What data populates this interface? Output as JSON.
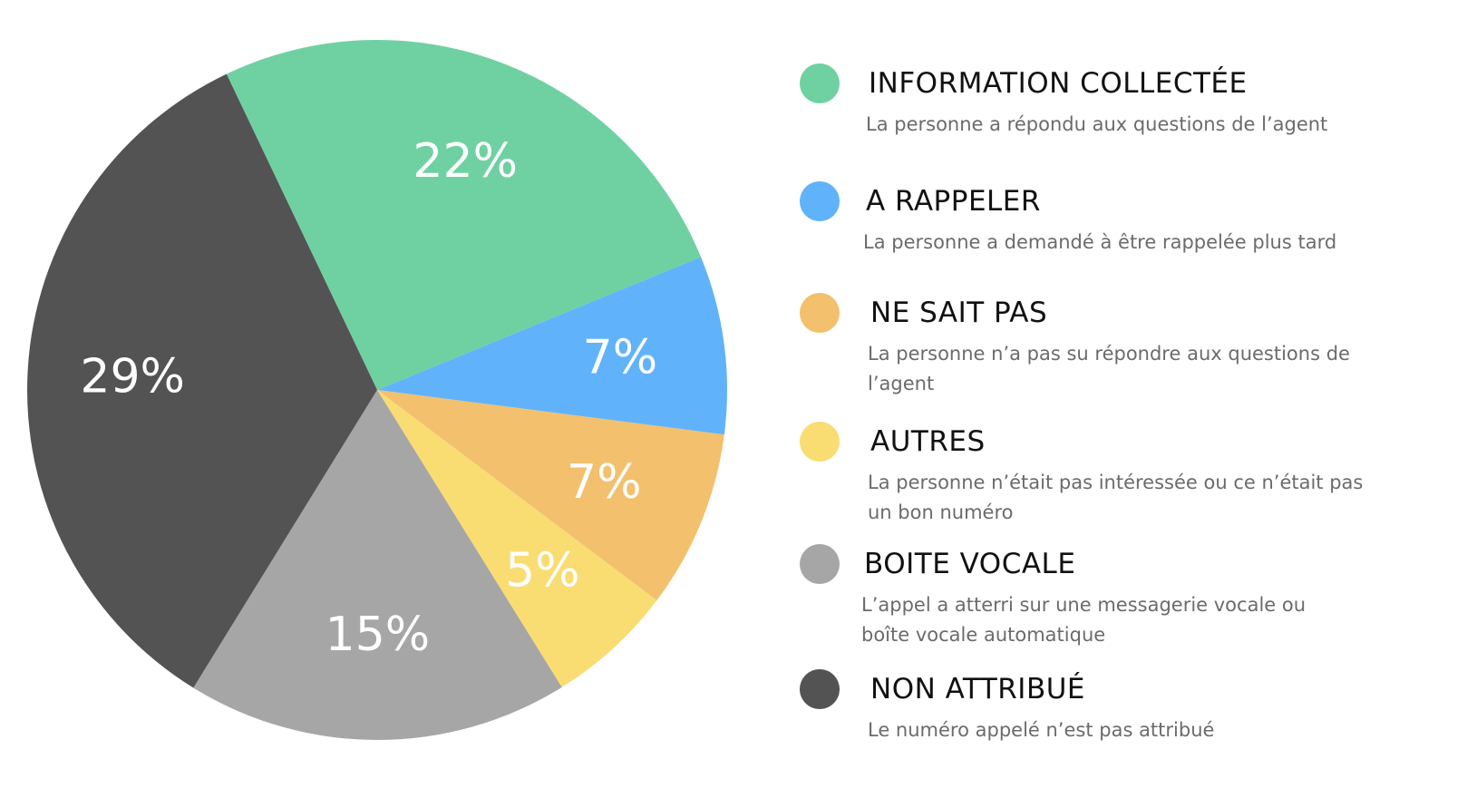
{
  "chart_data": {
    "type": "pie",
    "slices": [
      {
        "label": "22%",
        "value": 22,
        "color": "#6fd1a2"
      },
      {
        "label": "7%",
        "value": 7,
        "color": "#60b3fa"
      },
      {
        "label": "7%",
        "value": 7,
        "color": "#f3c06d"
      },
      {
        "label": "5%",
        "value": 5,
        "color": "#f9dd73"
      },
      {
        "label": "15%",
        "value": 15,
        "color": "#a6a6a6"
      },
      {
        "label": "29%",
        "value": 29,
        "color": "#535353"
      }
    ]
  },
  "legend": [
    {
      "title": "INFORMATION COLLECTÉE",
      "desc_lines": [
        "La personne a répondu aux questions de l’agent"
      ],
      "color": "#6fd1a2"
    },
    {
      "title": "A RAPPELER",
      "desc_lines": [
        "La personne a demandé à être rappelée plus tard"
      ],
      "color": "#60b3fa"
    },
    {
      "title": "NE SAIT PAS",
      "desc_lines": [
        "La personne n’a pas su répondre aux questions de",
        "l’agent"
      ],
      "color": "#f3c06d"
    },
    {
      "title": "AUTRES",
      "desc_lines": [
        "La personne n’était pas intéressée ou ce n’était pas",
        "un bon numéro"
      ],
      "color": "#f9dd73"
    },
    {
      "title": "BOITE VOCALE",
      "desc_lines": [
        "L’appel a atterri sur une messagerie vocale ou",
        "boîte vocale automatique"
      ],
      "color": "#a6a6a6"
    },
    {
      "title": "NON ATTRIBUÉ",
      "desc_lines": [
        "Le numéro appelé n’est pas attribué"
      ],
      "color": "#535353"
    }
  ]
}
